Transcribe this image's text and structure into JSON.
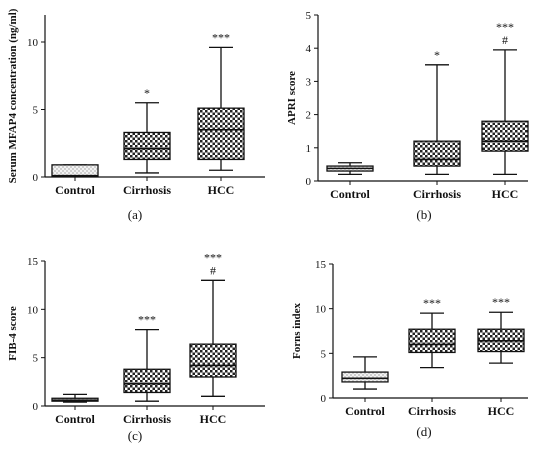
{
  "chart_data": [
    {
      "id": "a",
      "type": "box",
      "panel_label": "(a)",
      "ylabel": "Serum MFAP4 concentration (ng/ml)",
      "ylim": [
        0,
        12
      ],
      "yticks": [
        "0",
        "5",
        "10"
      ],
      "ytick_values": [
        0,
        5,
        10
      ],
      "categories": [
        "Control",
        "Cirrhosis",
        "HCC"
      ],
      "boxes": [
        {
          "category": "Control",
          "min": 0.05,
          "q1": 0.05,
          "median": 0.1,
          "q3": 0.9,
          "max": 0.9,
          "pattern": "light"
        },
        {
          "category": "Cirrhosis",
          "min": 0.3,
          "q1": 1.3,
          "median": 2.1,
          "q3": 3.3,
          "max": 5.5,
          "pattern": "check"
        },
        {
          "category": "HCC",
          "min": 0.5,
          "q1": 1.3,
          "median": 3.5,
          "q3": 5.1,
          "max": 9.6,
          "pattern": "check"
        }
      ],
      "annotations": [
        {
          "category": "Control",
          "text": ""
        },
        {
          "category": "Cirrhosis",
          "text": "*"
        },
        {
          "category": "HCC",
          "text": "***"
        }
      ]
    },
    {
      "id": "b",
      "type": "box",
      "panel_label": "(b)",
      "ylabel": "APRI score",
      "ylim": [
        0,
        5
      ],
      "yticks": [
        "0",
        "1",
        "2",
        "3",
        "4",
        "5"
      ],
      "ytick_values": [
        0,
        1,
        2,
        3,
        4,
        5
      ],
      "categories": [
        "Control",
        "Cirrhosis",
        "HCC"
      ],
      "boxes": [
        {
          "category": "Control",
          "min": 0.2,
          "q1": 0.3,
          "median": 0.38,
          "q3": 0.45,
          "max": 0.55,
          "pattern": "light"
        },
        {
          "category": "Cirrhosis",
          "min": 0.2,
          "q1": 0.45,
          "median": 0.65,
          "q3": 1.2,
          "max": 3.5,
          "pattern": "check"
        },
        {
          "category": "HCC",
          "min": 0.2,
          "q1": 0.9,
          "median": 1.2,
          "q3": 1.8,
          "max": 3.95,
          "pattern": "check"
        }
      ],
      "annotations": [
        {
          "category": "Control",
          "text": ""
        },
        {
          "category": "Cirrhosis",
          "text": "*"
        },
        {
          "category": "HCC",
          "text": "***"
        },
        {
          "category": "HCC",
          "text": "#"
        }
      ]
    },
    {
      "id": "c",
      "type": "box",
      "panel_label": "(c)",
      "ylabel": "FIB-4 score",
      "ylim": [
        0,
        15
      ],
      "yticks": [
        "0",
        "5",
        "10",
        "15"
      ],
      "ytick_values": [
        0,
        5,
        10,
        15
      ],
      "categories": [
        "Control",
        "Cirrhosis",
        "HCC"
      ],
      "boxes": [
        {
          "category": "Control",
          "min": 0.4,
          "q1": 0.5,
          "median": 0.6,
          "q3": 0.8,
          "max": 1.2,
          "pattern": "light"
        },
        {
          "category": "Cirrhosis",
          "min": 0.5,
          "q1": 1.4,
          "median": 2.3,
          "q3": 3.8,
          "max": 7.9,
          "pattern": "check"
        },
        {
          "category": "HCC",
          "min": 1.0,
          "q1": 3.0,
          "median": 4.2,
          "q3": 6.4,
          "max": 13.0,
          "pattern": "check"
        }
      ],
      "annotations": [
        {
          "category": "Control",
          "text": ""
        },
        {
          "category": "Cirrhosis",
          "text": "***"
        },
        {
          "category": "HCC",
          "text": "***"
        },
        {
          "category": "HCC",
          "text": "#"
        }
      ]
    },
    {
      "id": "d",
      "type": "box",
      "panel_label": "(d)",
      "ylabel": "Forns index",
      "ylim": [
        0,
        15
      ],
      "yticks": [
        "0",
        "5",
        "10",
        "15"
      ],
      "ytick_values": [
        0,
        5,
        10,
        15
      ],
      "categories": [
        "Control",
        "Cirrhosis",
        "HCC"
      ],
      "boxes": [
        {
          "category": "Control",
          "min": 1.0,
          "q1": 1.8,
          "median": 2.2,
          "q3": 2.9,
          "max": 4.6,
          "pattern": "light"
        },
        {
          "category": "Cirrhosis",
          "min": 3.4,
          "q1": 5.1,
          "median": 6.0,
          "q3": 7.7,
          "max": 9.5,
          "pattern": "check"
        },
        {
          "category": "HCC",
          "min": 3.9,
          "q1": 5.2,
          "median": 6.4,
          "q3": 7.7,
          "max": 9.6,
          "pattern": "check"
        }
      ],
      "annotations": [
        {
          "category": "Control",
          "text": ""
        },
        {
          "category": "Cirrhosis",
          "text": "***"
        },
        {
          "category": "HCC",
          "text": "***"
        }
      ]
    }
  ]
}
